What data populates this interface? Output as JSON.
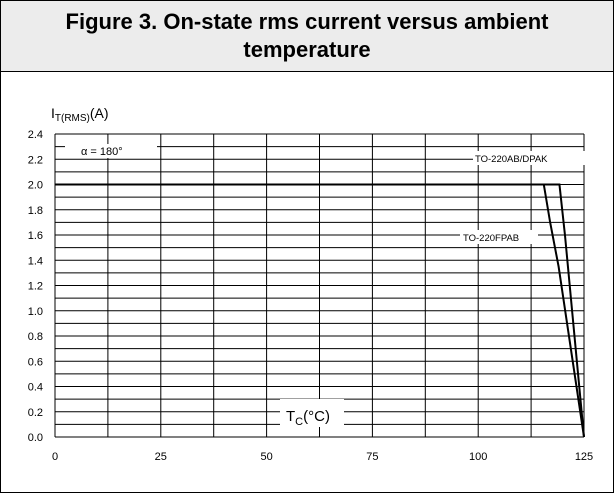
{
  "chart_data": {
    "type": "line",
    "title": "Figure 3. On-state rms current versus ambient temperature",
    "ylabel_main": "I",
    "ylabel_sub": "T(RMS)",
    "ylabel_unit": "(A)",
    "xlabel_main": "T",
    "xlabel_sub": "C",
    "xlabel_unit": "(°C)",
    "xlim": [
      0,
      125
    ],
    "ylim": [
      0,
      2.4
    ],
    "xticks": [
      "0",
      "25",
      "50",
      "75",
      "100",
      "125"
    ],
    "yticks": [
      "0.0",
      "0.2",
      "0.4",
      "0.6",
      "0.8",
      "1.0",
      "1.2",
      "1.4",
      "1.6",
      "1.8",
      "2.0",
      "2.2",
      "2.4"
    ],
    "annotation": "α = 180°",
    "grid": true,
    "series": [
      {
        "name": "TO-220AB/DPAK",
        "x": [
          0,
          119.2,
          120.5,
          125
        ],
        "y": [
          2.0,
          2.0,
          1.6,
          0
        ]
      },
      {
        "name": "TO-220FPAB",
        "x": [
          0,
          115.5,
          117,
          119,
          125
        ],
        "y": [
          2.0,
          2.0,
          1.7,
          1.35,
          0
        ]
      }
    ]
  }
}
